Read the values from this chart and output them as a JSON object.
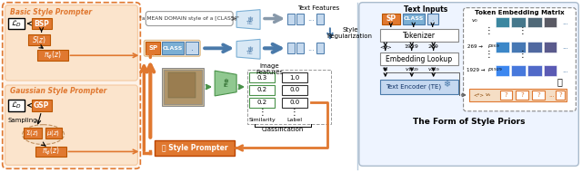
{
  "fig_width": 6.4,
  "fig_height": 1.9,
  "dpi": 100,
  "bg_color": "#ffffff",
  "orange": "#E07830",
  "orange_light": "#F5C9A0",
  "orange_pale": "#FAE8D0",
  "blue": "#7BAFD4",
  "blue_dark": "#4A7AAA",
  "blue_light": "#C5D9EE",
  "blue_pale": "#D8E8F5",
  "green": "#72B572",
  "green_dark": "#4A924A",
  "gray": "#999999",
  "panel_bg": "#EEF4FF",
  "title_bsp": "Basic Style Prompter",
  "title_gsp": "Gaussian Style Prompter",
  "title_form": "The Form of Style Priors",
  "text_inputs": "Text Inputs",
  "token_embed": "Token Embedding Matrix",
  "style_prompter_label": "Style Prompter",
  "style_reg": "Style\nRegularization",
  "classification": "Classification",
  "similarity": "Similarity",
  "label_txt": "Label",
  "text_features": "Text Features",
  "image_features_txt": "Image\nFeatures",
  "tokenizer": "Tokenizer",
  "embedding_lookup": "Embedding Lookup",
  "text_encoder": "Text Encoder (TE)",
  "sampling": "Sampling"
}
